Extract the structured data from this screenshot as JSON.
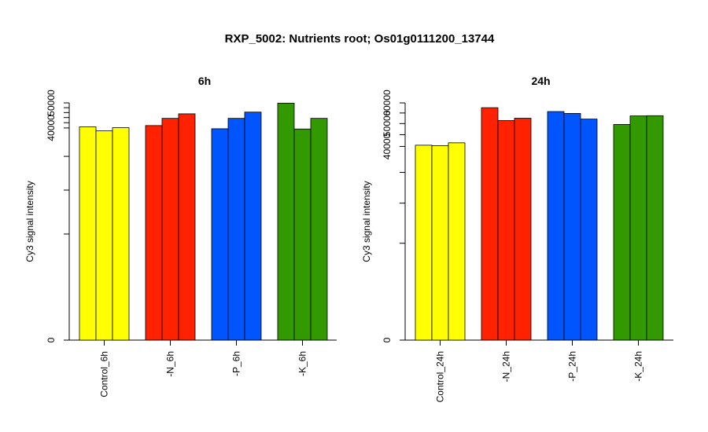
{
  "title": "RXP_5002: Nutrients root; Os01g0111200_13744",
  "chart_data": [
    {
      "type": "bar",
      "title": "6h",
      "ylabel": "Cy3 signal intensity",
      "ylim": [
        0,
        50000
      ],
      "y_scale": "sqrt",
      "yticks_major": [
        0,
        40000,
        50000
      ],
      "yticks_minor": [
        10000,
        20000,
        30000,
        42000,
        44000,
        46000,
        48000
      ],
      "groups": [
        {
          "label": "Control_6h",
          "color": "#FFFF00",
          "values": [
            40400,
            38900,
            40100
          ]
        },
        {
          "label": "-N_6h",
          "color": "#FF2200",
          "values": [
            40900,
            43700,
            45500
          ]
        },
        {
          "label": "-P_6h",
          "color": "#0055FF",
          "values": [
            39700,
            43700,
            46200
          ]
        },
        {
          "label": "-K_6h",
          "color": "#339900",
          "values": [
            49900,
            39600,
            43700
          ]
        }
      ]
    },
    {
      "type": "bar",
      "title": "24h",
      "ylabel": "Cy3 signal intensity",
      "ylim": [
        0,
        60000
      ],
      "y_scale": "sqrt",
      "yticks_major": [
        0,
        40000,
        50000,
        60000
      ],
      "yticks_minor": [
        10000,
        20000,
        30000,
        45000,
        55000
      ],
      "groups": [
        {
          "label": "Control_24h",
          "color": "#FFFF00",
          "values": [
            40500,
            40300,
            41500
          ]
        },
        {
          "label": "-N_24h",
          "color": "#FF2200",
          "values": [
            57600,
            51400,
            52500
          ]
        },
        {
          "label": "-P_24h",
          "color": "#0055FF",
          "values": [
            55700,
            54800,
            52100
          ]
        },
        {
          "label": "-K_24h",
          "color": "#339900",
          "values": [
            49600,
            53600,
            53700
          ]
        }
      ]
    }
  ]
}
